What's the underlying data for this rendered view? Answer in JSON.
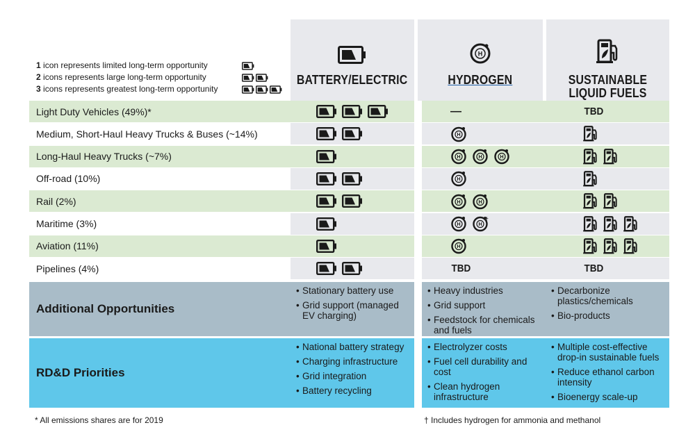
{
  "legend": [
    {
      "num": "1",
      "text": " icon represents limited long-term opportunity",
      "count": 1
    },
    {
      "num": "2",
      "text": " icons represents large long-term opportunity",
      "count": 2
    },
    {
      "num": "3",
      "text": " icons represents greatest long-term opportunity",
      "count": 3
    }
  ],
  "columns": [
    {
      "title": "BATTERY/ELECTRIC",
      "icon": "battery-icon"
    },
    {
      "title": "HYDROGEN",
      "icon": "hydrogen-icon"
    },
    {
      "title_lines": [
        "SUSTAINABLE",
        "LIQUID FUELS"
      ],
      "icon": "fuel-pump-icon"
    }
  ],
  "rows": [
    {
      "label": "Light Duty Vehicles (49%)*",
      "battery": 3,
      "hydrogen_text": "—",
      "fuel_text": "TBD"
    },
    {
      "label": "Medium, Short-Haul Heavy Trucks & Buses (~14%)",
      "battery": 2,
      "hydrogen": 1,
      "fuel": 1
    },
    {
      "label": "Long-Haul Heavy Trucks (~7%)",
      "battery": 1,
      "hydrogen": 3,
      "fuel": 2
    },
    {
      "label": "Off-road (10%)",
      "battery": 2,
      "hydrogen": 1,
      "fuel": 1
    },
    {
      "label": "Rail (2%)",
      "battery": 2,
      "hydrogen": 2,
      "fuel": 2
    },
    {
      "label": "Maritime (3%)",
      "battery": 1,
      "hydrogen": 2,
      "hydrogen_mark": "†",
      "fuel": 3
    },
    {
      "label": "Aviation (11%)",
      "battery": 1,
      "hydrogen": 1,
      "fuel": 3
    },
    {
      "label": "Pipelines (4%)",
      "battery": 2,
      "hydrogen_text": "TBD",
      "fuel_text": "TBD"
    }
  ],
  "additional": {
    "label": "Additional Opportunities",
    "battery": [
      "Stationary battery use",
      "Grid support (managed EV charging)"
    ],
    "hydrogen": [
      "Heavy industries",
      "Grid support",
      "Feedstock for chemicals and fuels"
    ],
    "fuel": [
      "Decarbonize plastics/chemicals",
      "Bio-products"
    ]
  },
  "rdd": {
    "label": "RD&D Priorities",
    "battery": [
      "National battery strategy",
      "Charging infrastructure",
      "Grid integration",
      "Battery recycling"
    ],
    "hydrogen": [
      "Electrolyzer costs",
      "Fuel cell durability and cost",
      "Clean hydrogen infrastructure"
    ],
    "fuel": [
      "Multiple cost-effective drop-in sustainable fuels",
      "Reduce ethanol carbon intensity",
      "Bioenergy scale-up"
    ]
  },
  "footnotes": {
    "left": "* All emissions shares are for 2019",
    "right": "† Includes hydrogen for ammonia and methanol"
  },
  "colors": {
    "green_row": "#dbead2",
    "gray_row": "#e8e9ed",
    "opportunities": "#a9bcc8",
    "rdd": "#5fc7ea"
  }
}
